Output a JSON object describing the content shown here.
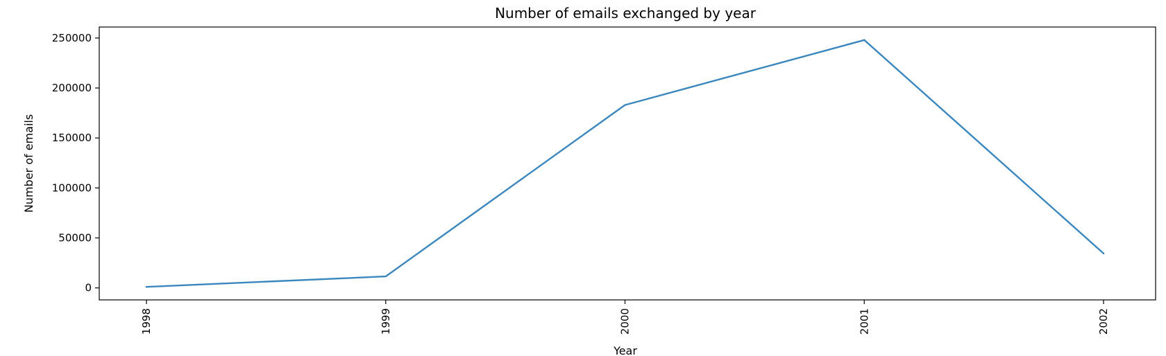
{
  "chart_data": {
    "type": "line",
    "title": "Number of emails exchanged by year",
    "xlabel": "Year",
    "ylabel": "Number of emails",
    "x": [
      "1998",
      "1999",
      "2000",
      "2001",
      "2002"
    ],
    "series": [
      {
        "values": [
          1000,
          11500,
          183000,
          248000,
          34500
        ],
        "color": "#3a86be"
      }
    ],
    "yticks": [
      0,
      50000,
      100000,
      150000,
      200000,
      250000
    ],
    "ytick_labels": [
      "0",
      "50000",
      "100000",
      "150000",
      "200000",
      "250000"
    ],
    "ylim": [
      -12000,
      261000
    ],
    "grid": false,
    "legend": "none"
  }
}
